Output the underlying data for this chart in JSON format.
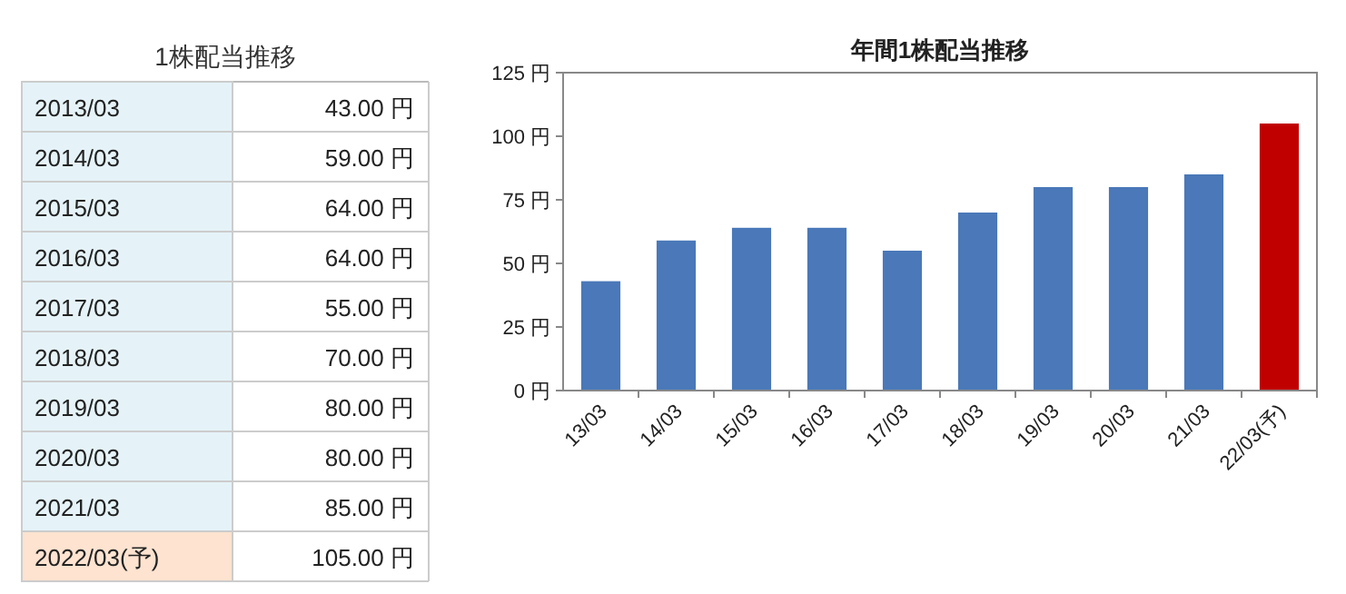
{
  "chart_data": [
    {
      "type": "other",
      "title": "1株配当推移",
      "categories": [
        "2013/03",
        "2014/03",
        "2015/03",
        "2016/03",
        "2017/03",
        "2018/03",
        "2019/03",
        "2020/03",
        "2021/03",
        "2022/03(予)"
      ],
      "value_labels": [
        "43.00 円",
        "59.00 円",
        "64.00 円",
        "64.00 円",
        "55.00 円",
        "70.00 円",
        "80.00 円",
        "80.00 円",
        "85.00 円",
        "105.00 円"
      ],
      "colors": [
        "#e5f3f8",
        "#e5f3f8",
        "#e5f3f8",
        "#e5f3f8",
        "#e5f3f8",
        "#e5f3f8",
        "#e5f3f8",
        "#e5f3f8",
        "#e5f3f8",
        "#fde3d0"
      ]
    },
    {
      "type": "bar",
      "title": "年間1株配当推移",
      "categories": [
        "13/03",
        "14/03",
        "15/03",
        "16/03",
        "17/03",
        "18/03",
        "19/03",
        "20/03",
        "21/03",
        "22/03(予)"
      ],
      "values": [
        43,
        59,
        64,
        64,
        55,
        70,
        80,
        80,
        85,
        105
      ],
      "colors": [
        "#4a78b8",
        "#4a78b8",
        "#4a78b8",
        "#4a78b8",
        "#4a78b8",
        "#4a78b8",
        "#4a78b8",
        "#4a78b8",
        "#4a78b8",
        "#c00000"
      ],
      "ylim": [
        0,
        125
      ],
      "yticks": [
        {
          "value": 0,
          "label": "0 円"
        },
        {
          "value": 25,
          "label": "25 円"
        },
        {
          "value": 50,
          "label": "50 円"
        },
        {
          "value": 75,
          "label": "75 円"
        },
        {
          "value": 100,
          "label": "100 円"
        },
        {
          "value": 125,
          "label": "125 円"
        }
      ],
      "grid": false
    }
  ]
}
